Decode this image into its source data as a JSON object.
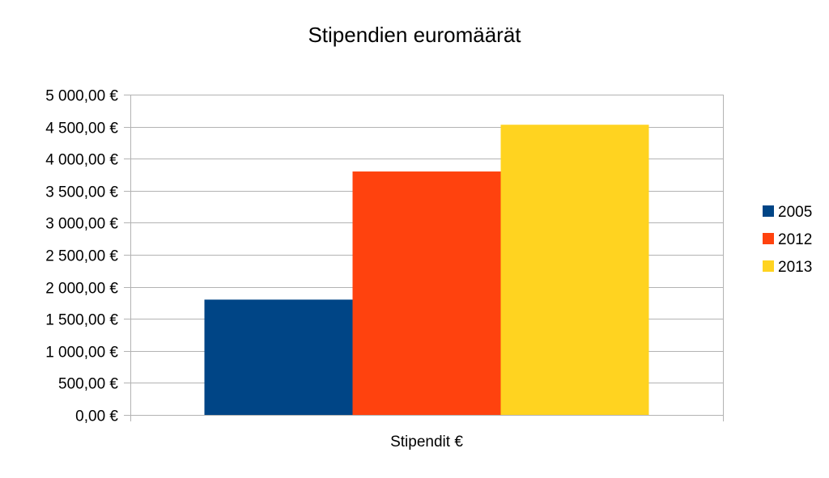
{
  "chart_data": {
    "type": "bar",
    "title": "Stipendien euromäärät",
    "categories": [
      "Stipendit €"
    ],
    "series": [
      {
        "name": "2005",
        "values": [
          1800
        ],
        "color": "#004586"
      },
      {
        "name": "2012",
        "values": [
          3800
        ],
        "color": "#ff420e"
      },
      {
        "name": "2013",
        "values": [
          4530
        ],
        "color": "#ffd320"
      }
    ],
    "xlabel": "",
    "ylabel": "",
    "ylim": [
      0,
      5000
    ],
    "y_ticks": [
      0,
      500,
      1000,
      1500,
      2000,
      2500,
      3000,
      3500,
      4000,
      4500,
      5000
    ],
    "y_tick_labels": [
      "0,00 €",
      "500,00 €",
      "1 000,00 €",
      "1 500,00 €",
      "2 000,00 €",
      "2 500,00 €",
      "3 000,00 €",
      "3 500,00 €",
      "4 000,00 €",
      "4 500,00 €",
      "5 000,00 €"
    ],
    "grid": true,
    "legend_position": "right"
  }
}
